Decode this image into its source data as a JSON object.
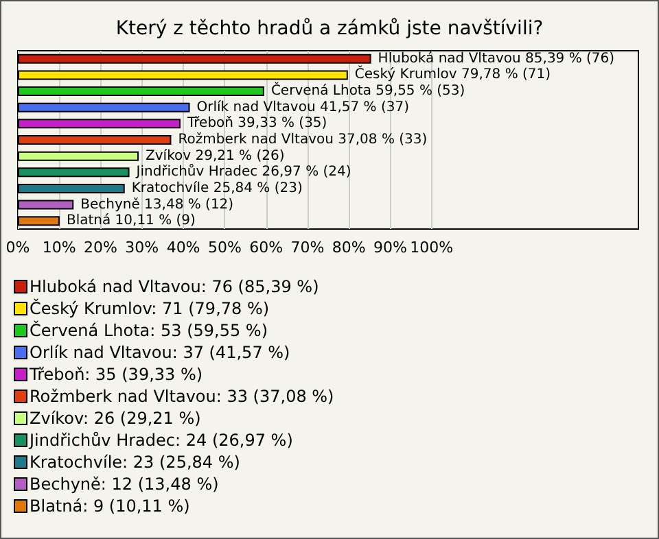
{
  "chart_data": {
    "type": "bar",
    "orientation": "horizontal",
    "stacked": true,
    "title": "Který z těchto hradů a zámků jste navštívili?",
    "categories": [
      null,
      null,
      null,
      null,
      null,
      null,
      null,
      null,
      null,
      null,
      null
    ],
    "series": [
      {
        "name": "Hluboká nad Vltavou: 76 (85,39 %)",
        "color": "#c8200e",
        "values": [
          85.39,
          null,
          null,
          null,
          null,
          null,
          null,
          null,
          null,
          null,
          null
        ],
        "value_labels": [
          "Hluboká nad Vltavou 85,39 % (76)",
          null,
          null,
          null,
          null,
          null,
          null,
          null,
          null,
          null,
          null
        ]
      },
      {
        "name": "Český Krumlov: 71 (79,78 %)",
        "color": "#ffe400",
        "values": [
          null,
          79.78,
          null,
          null,
          null,
          null,
          null,
          null,
          null,
          null,
          null
        ],
        "value_labels": [
          null,
          "Český Krumlov 79,78 % (71)",
          null,
          null,
          null,
          null,
          null,
          null,
          null,
          null,
          null
        ]
      },
      {
        "name": "Červená Lhota: 53 (59,55 %)",
        "color": "#1ec81e",
        "values": [
          null,
          null,
          59.55,
          null,
          null,
          null,
          null,
          null,
          null,
          null,
          null
        ],
        "value_labels": [
          null,
          null,
          "Červená Lhota 59,55 % (53)",
          null,
          null,
          null,
          null,
          null,
          null,
          null,
          null
        ]
      },
      {
        "name": "Orlík nad Vltavou: 37 (41,57 %)",
        "color": "#4a6ef0",
        "values": [
          null,
          null,
          null,
          41.57,
          null,
          null,
          null,
          null,
          null,
          null,
          null
        ],
        "value_labels": [
          null,
          null,
          null,
          "Orlík nad Vltavou 41,57 % (37)",
          null,
          null,
          null,
          null,
          null,
          null,
          null
        ]
      },
      {
        "name": "Třeboň: 35 (39,33 %)",
        "color": "#c81ec8",
        "values": [
          null,
          null,
          null,
          null,
          39.33,
          null,
          null,
          null,
          null,
          null,
          null
        ],
        "value_labels": [
          null,
          null,
          null,
          null,
          "Třeboň 39,33 % (35)",
          null,
          null,
          null,
          null,
          null,
          null
        ]
      },
      {
        "name": "Rožmberk nad Vltavou: 33 (37,08 %)",
        "color": "#e04010",
        "values": [
          null,
          null,
          null,
          null,
          null,
          37.08,
          null,
          null,
          null,
          null,
          null
        ],
        "value_labels": [
          null,
          null,
          null,
          null,
          null,
          "Rožmberk nad Vltavou 37,08 % (33)",
          null,
          null,
          null,
          null,
          null
        ]
      },
      {
        "name": "Zvíkov: 26 (29,21 %)",
        "color": "#c8ff80",
        "values": [
          null,
          null,
          null,
          null,
          null,
          null,
          29.21,
          null,
          null,
          null,
          null
        ],
        "value_labels": [
          null,
          null,
          null,
          null,
          null,
          null,
          "Zvíkov 29,21 % (26)",
          null,
          null,
          null,
          null
        ]
      },
      {
        "name": "Jindřichův Hradec: 24 (26,97 %)",
        "color": "#189060",
        "values": [
          null,
          null,
          null,
          null,
          null,
          null,
          null,
          26.97,
          null,
          null,
          null
        ],
        "value_labels": [
          null,
          null,
          null,
          null,
          null,
          null,
          null,
          "Jindřichův Hradec 26,97 % (24)",
          null,
          null,
          null
        ]
      },
      {
        "name": "Kratochvíle: 23 (25,84 %)",
        "color": "#207888",
        "values": [
          null,
          null,
          null,
          null,
          null,
          null,
          null,
          null,
          25.84,
          null,
          null
        ],
        "value_labels": [
          null,
          null,
          null,
          null,
          null,
          null,
          null,
          null,
          "Kratochvíle 25,84 % (23)",
          null,
          null
        ]
      },
      {
        "name": "Bechyně: 12 (13,48 %)",
        "color": "#b060c0",
        "values": [
          null,
          null,
          null,
          null,
          null,
          null,
          null,
          null,
          null,
          13.48,
          null
        ],
        "value_labels": [
          null,
          null,
          null,
          null,
          null,
          null,
          null,
          null,
          null,
          "Bechyně 13,48 % (12)",
          null
        ]
      },
      {
        "name": "Blatná: 9 (10,11 %)",
        "color": "#e07810",
        "values": [
          null,
          null,
          null,
          null,
          null,
          null,
          null,
          null,
          null,
          null,
          10.11
        ],
        "value_labels": [
          null,
          null,
          null,
          null,
          null,
          null,
          null,
          null,
          null,
          null,
          "Blatná 10,11 % (9)"
        ]
      }
    ],
    "xlim": [
      0,
      150
    ],
    "xticks": [
      {
        "value": 0,
        "label": "0%"
      },
      {
        "value": 10,
        "label": "10%"
      },
      {
        "value": 20,
        "label": "20%"
      },
      {
        "value": 30,
        "label": "30%"
      },
      {
        "value": 40,
        "label": "40%"
      },
      {
        "value": 50,
        "label": "50%"
      },
      {
        "value": 60,
        "label": "60%"
      },
      {
        "value": 70,
        "label": "70%"
      },
      {
        "value": 80,
        "label": "80%"
      },
      {
        "value": 90,
        "label": "90%"
      },
      {
        "value": 100,
        "label": "100%"
      }
    ],
    "grid": "x",
    "legend": "bottom"
  }
}
